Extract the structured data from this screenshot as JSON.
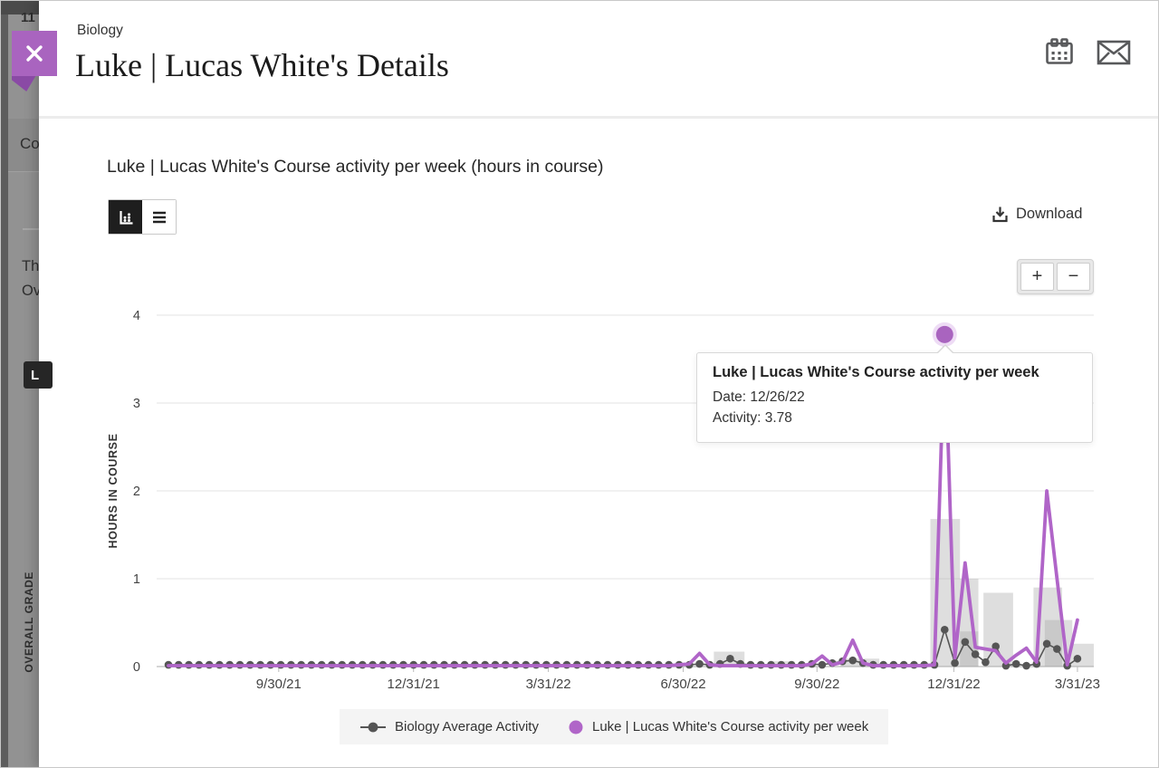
{
  "background_page": {
    "partial_number": "11",
    "tab_partial": "Co",
    "line1_partial": "Th",
    "line2_partial": "Ov",
    "badge_partial": "L",
    "vertical_label": "OVERALL GRADE"
  },
  "header": {
    "course_label": "Biology",
    "title": "Luke | Lucas White's Details"
  },
  "toolbar": {
    "section_title": "Luke | Lucas White's Course activity per week (hours in course)",
    "download_label": "Download"
  },
  "zoom_controls": {
    "zoom_in": "+",
    "zoom_out": "−"
  },
  "tooltip": {
    "title": "Luke | Lucas White's Course activity per week",
    "date": "Date: 12/26/22",
    "activity": "Activity: 3.78"
  },
  "colors": {
    "accent_purple": "#a964bf",
    "accent_purple_dark": "#8a4aa5",
    "line_purple": "#b065c8",
    "halo_purple": "#eedcf5",
    "average_gray": "#555555",
    "bar_gray": "#a8a8a8",
    "legend_bg": "#f4f4f4"
  },
  "chart_data": {
    "type": "line",
    "title": "Luke | Lucas White's Course activity per week (hours in course)",
    "ylabel": "HOURS IN COURSE",
    "ylim": [
      0,
      4
    ],
    "yticks": [
      0,
      1,
      2,
      3,
      4
    ],
    "x_unit": "week",
    "x_start": "7/12/21",
    "grid": true,
    "legend_position": "bottom",
    "xticks": [
      {
        "label": "9/30/21",
        "week": 10.8
      },
      {
        "label": "12/31/21",
        "week": 24.0
      },
      {
        "label": "3/31/22",
        "week": 37.2
      },
      {
        "label": "6/30/22",
        "week": 50.4
      },
      {
        "label": "9/30/22",
        "week": 63.5
      },
      {
        "label": "12/31/22",
        "week": 76.9
      },
      {
        "label": "3/31/23",
        "week": 89.0
      }
    ],
    "series": [
      {
        "name": "Biology Average Activity",
        "color": "#555555",
        "marker": "dot",
        "values": [
          0.02,
          0.02,
          0.02,
          0.02,
          0.02,
          0.02,
          0.02,
          0.02,
          0.02,
          0.02,
          0.02,
          0.02,
          0.02,
          0.02,
          0.02,
          0.02,
          0.02,
          0.02,
          0.02,
          0.02,
          0.02,
          0.02,
          0.02,
          0.02,
          0.02,
          0.02,
          0.02,
          0.02,
          0.02,
          0.02,
          0.02,
          0.02,
          0.02,
          0.02,
          0.02,
          0.02,
          0.02,
          0.02,
          0.02,
          0.02,
          0.02,
          0.02,
          0.02,
          0.02,
          0.02,
          0.02,
          0.02,
          0.02,
          0.02,
          0.02,
          0.02,
          0.02,
          0.03,
          0.02,
          0.03,
          0.09,
          0.03,
          0.02,
          0.02,
          0.02,
          0.02,
          0.02,
          0.02,
          0.03,
          0.02,
          0.04,
          0.06,
          0.07,
          0.04,
          0.02,
          0.02,
          0.02,
          0.02,
          0.02,
          0.02,
          0.02,
          0.42,
          0.04,
          0.28,
          0.14,
          0.05,
          0.23,
          0.01,
          0.03,
          0.01,
          0.03,
          0.26,
          0.2,
          0.01,
          0.09
        ]
      },
      {
        "name": "Luke | Lucas White's Course activity per week",
        "color": "#b065c8",
        "marker": "none",
        "values": [
          0.01,
          0.01,
          0.01,
          0.01,
          0.01,
          0.01,
          0.01,
          0.01,
          0.01,
          0.01,
          0.01,
          0.01,
          0.01,
          0.01,
          0.01,
          0.01,
          0.01,
          0.01,
          0.01,
          0.01,
          0.01,
          0.01,
          0.01,
          0.01,
          0.01,
          0.01,
          0.01,
          0.01,
          0.01,
          0.01,
          0.01,
          0.01,
          0.01,
          0.01,
          0.01,
          0.01,
          0.01,
          0.01,
          0.01,
          0.01,
          0.01,
          0.01,
          0.01,
          0.01,
          0.01,
          0.01,
          0.01,
          0.01,
          0.01,
          0.01,
          0.02,
          0.03,
          0.15,
          0.02,
          0.01,
          0.01,
          0.01,
          0.01,
          0.01,
          0.01,
          0.01,
          0.01,
          0.01,
          0.03,
          0.12,
          0.02,
          0.05,
          0.3,
          0.04,
          0.01,
          0.01,
          0.01,
          0.01,
          0.01,
          0.01,
          0.02,
          3.78,
          0.1,
          1.18,
          0.22,
          0.2,
          0.18,
          0.04,
          0.13,
          0.21,
          0.05,
          2.0,
          1.0,
          0.02,
          0.53
        ]
      }
    ],
    "bars": [
      {
        "week_start": 53.4,
        "span_weeks": 3.0,
        "value": 0.17
      },
      {
        "week_start": 59.1,
        "span_weeks": 2.2,
        "value": 0.06
      },
      {
        "week_start": 65.8,
        "span_weeks": 3.8,
        "value": 0.09
      },
      {
        "week_start": 74.6,
        "span_weeks": 2.9,
        "value": 1.68
      },
      {
        "week_start": 77.5,
        "span_weeks": 1.8,
        "value": 1.0
      },
      {
        "week_start": 77.5,
        "span_weeks": 1.8,
        "value": 0.4
      },
      {
        "week_start": 79.8,
        "span_weeks": 2.9,
        "value": 0.84
      },
      {
        "week_start": 84.7,
        "span_weeks": 2.8,
        "value": 0.9
      },
      {
        "week_start": 85.8,
        "span_weeks": 2.7,
        "value": 0.53
      },
      {
        "week_start": 88.5,
        "span_weeks": 2.1,
        "value": 0.26
      }
    ],
    "highlight": {
      "series": 1,
      "week": 76,
      "date": "12/26/22",
      "value": 3.78
    }
  },
  "legend": {
    "items": [
      {
        "label": "Biology Average Activity"
      },
      {
        "label": "Luke | Lucas White's Course activity per week"
      }
    ]
  }
}
